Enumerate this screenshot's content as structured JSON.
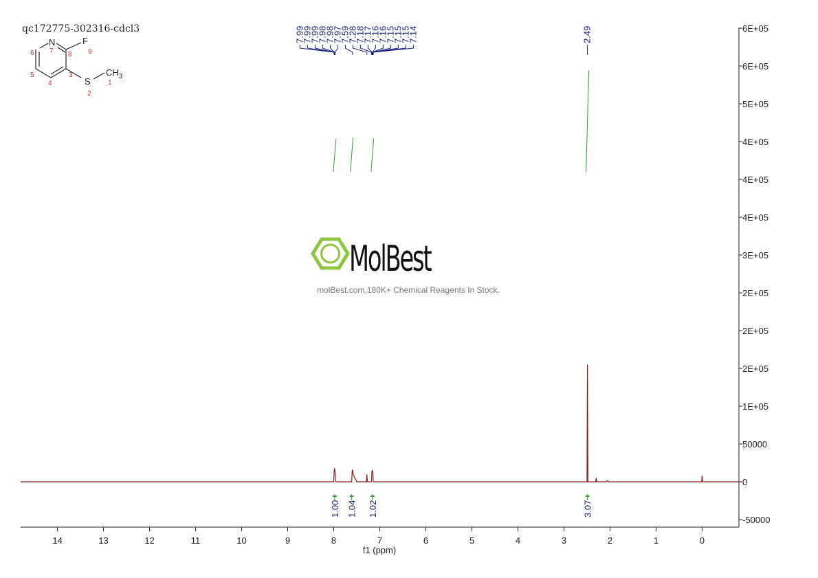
{
  "chart_data": {
    "type": "nmr",
    "title": "qc172775-302316-cdcl3",
    "x_label": "f1 (ppm)",
    "xlim": [
      14.8,
      -0.8
    ],
    "xticks": [
      14,
      13,
      12,
      11,
      10,
      9,
      8,
      7,
      6,
      5,
      4,
      3,
      2,
      1,
      0
    ],
    "ylim": [
      -60000,
      601000
    ],
    "yticks": [
      {
        "value": 600000,
        "label": "6E+05"
      },
      {
        "value": 550000,
        "label": "6E+05"
      },
      {
        "value": 500000,
        "label": "5E+05"
      },
      {
        "value": 450000,
        "label": "4E+05"
      },
      {
        "value": 400000,
        "label": "4E+05"
      },
      {
        "value": 350000,
        "label": "4E+05"
      },
      {
        "value": 300000,
        "label": "3E+05"
      },
      {
        "value": 250000,
        "label": "2E+05"
      },
      {
        "value": 200000,
        "label": "2E+05"
      },
      {
        "value": 150000,
        "label": "2E+05"
      },
      {
        "value": 100000,
        "label": "1E+05"
      },
      50000,
      0,
      -50000
    ],
    "color": "#8b1a1a",
    "x": [
      14.8,
      8.1,
      8.0,
      7.99,
      7.98,
      7.97,
      7.96,
      7.7,
      7.61,
      7.6,
      7.59,
      7.58,
      7.5,
      7.29,
      7.28,
      7.27,
      7.2,
      7.18,
      7.17,
      7.16,
      7.15,
      7.14,
      7.1,
      2.6,
      2.5,
      2.49,
      2.48,
      2.4,
      2.31,
      2.3,
      2.29,
      2.1,
      2.05,
      2.04,
      0.1,
      0.01,
      0,
      -0.01,
      -0.8
    ],
    "values": [
      0,
      0,
      0,
      15000,
      18000,
      12000,
      0,
      0,
      0,
      14000,
      16000,
      10000,
      0,
      0,
      10000,
      0,
      0,
      0,
      14000,
      15000,
      12000,
      0,
      0,
      0,
      0,
      155000,
      0,
      0,
      0,
      5000,
      0,
      0,
      1500,
      0,
      0,
      0,
      8000,
      0,
      0
    ],
    "peaks": [
      7.99,
      7.99,
      7.99,
      7.98,
      7.98,
      7.97,
      7.59,
      7.28,
      7.18,
      7.17,
      7.16,
      7.16,
      7.15,
      7.15,
      7.15,
      7.14,
      2.49
    ],
    "peak_color": "#1a237e",
    "integrals": {
      "centers": [
        7.98,
        7.61,
        7.16,
        2.49
      ],
      "values": [
        1.0,
        1.04,
        1.02,
        3.07
      ],
      "value_labels": [
        "1.00",
        "1.04",
        "1.02",
        "3.07"
      ],
      "color": "#2e9d2e"
    },
    "watermark": {
      "brand": "MolBest",
      "tagline": "molBest.com,180K+ Chemical Reagents In Stock."
    },
    "structure": {
      "atoms": [
        "N",
        "F",
        "S",
        "CH"
      ],
      "subscript": "3",
      "locants": [
        "1",
        "2",
        "3",
        "4",
        "5",
        "6",
        "7",
        "8",
        "9"
      ]
    }
  }
}
